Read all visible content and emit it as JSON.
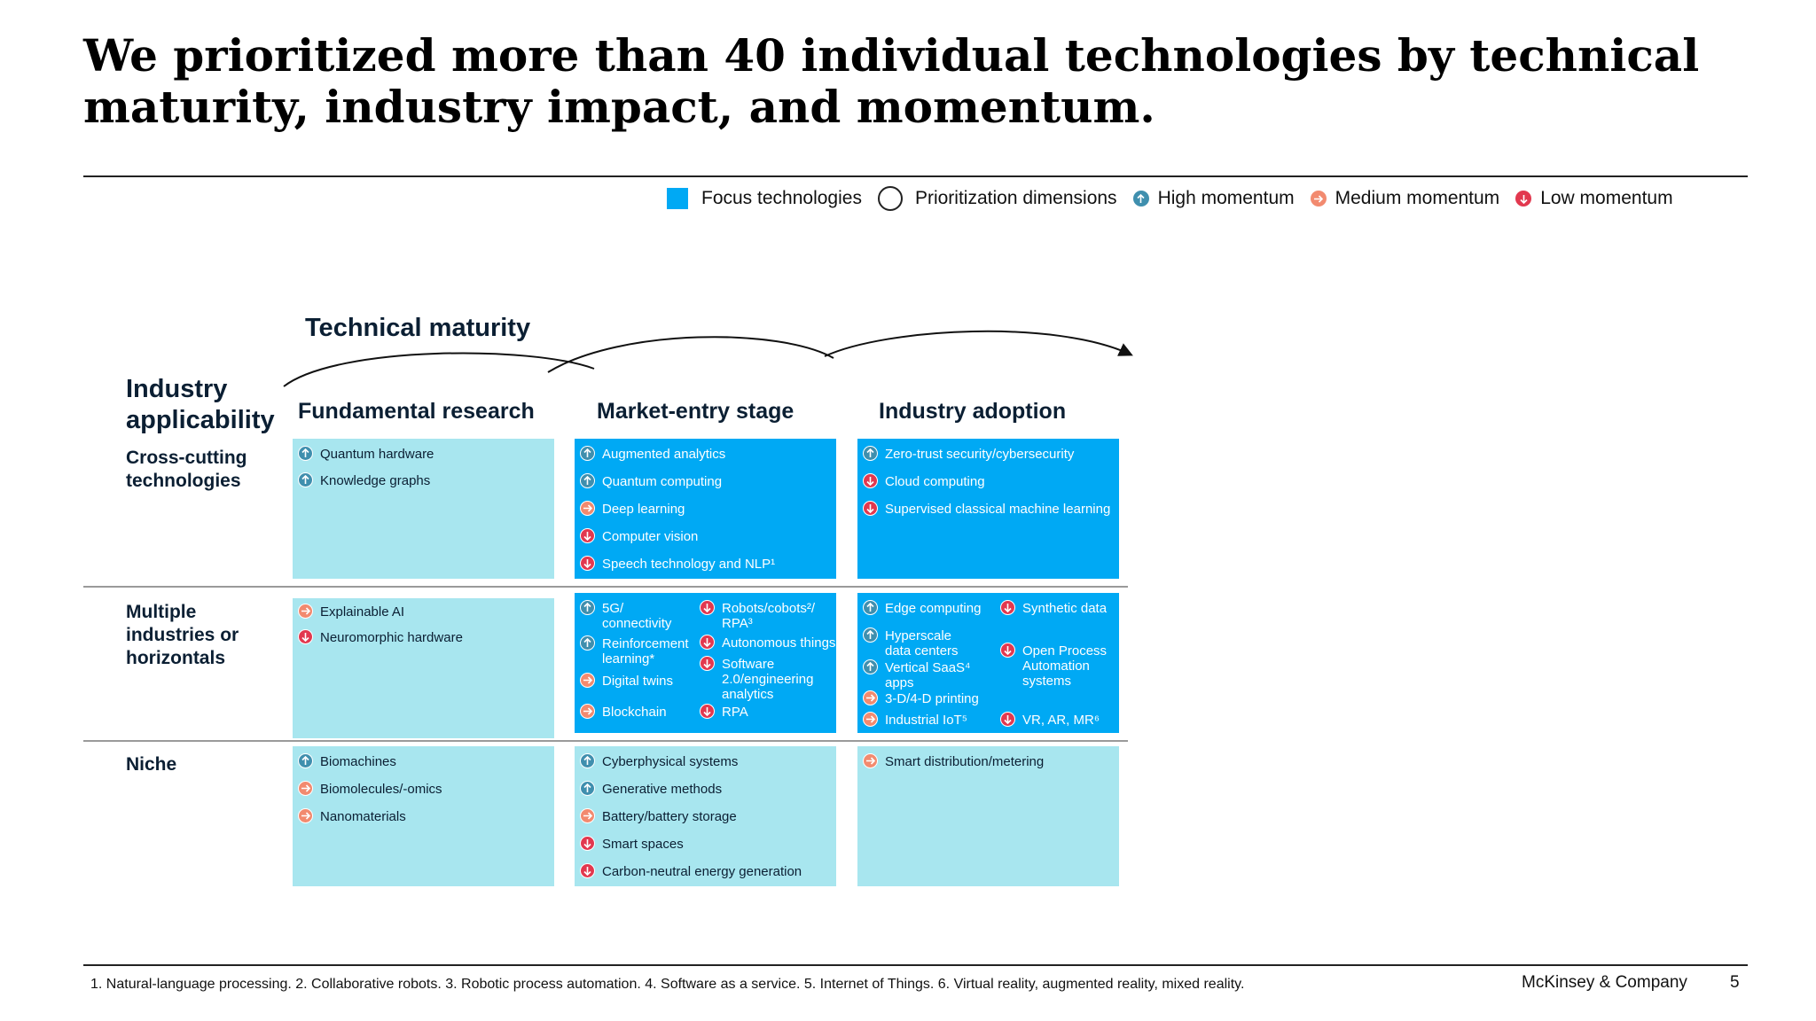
{
  "title": "We prioritized more than 40 individual technologies by technical maturity, industry impact, and momentum.",
  "legend": {
    "focus": "Focus technologies",
    "dimensions": "Prioritization dimensions",
    "high": "High momentum",
    "medium": "Medium momentum",
    "low": "Low momentum"
  },
  "colors": {
    "focus": "#00a9f4",
    "other": "#a8e6ef",
    "high": "#3f8fae",
    "medium": "#f28a6f",
    "low": "#e2384f"
  },
  "axis": {
    "technical_maturity": "Technical maturity",
    "industry_applicability": "Industry\napplicability"
  },
  "columns": [
    "Fundamental research",
    "Market-entry stage",
    "Industry adoption"
  ],
  "rows": [
    "Cross-cutting\ntechnologies",
    "Multiple\nindustries or\nhorizontals",
    "Niche"
  ],
  "cells": {
    "cross_fundamental": [
      {
        "label": "Quantum hardware",
        "momentum": "high"
      },
      {
        "label": "Knowledge graphs",
        "momentum": "high"
      }
    ],
    "cross_market": [
      {
        "label": "Augmented analytics",
        "momentum": "high"
      },
      {
        "label": "Quantum computing",
        "momentum": "high"
      },
      {
        "label": "Deep learning",
        "momentum": "medium"
      },
      {
        "label": "Computer vision",
        "momentum": "low"
      },
      {
        "label": "Speech technology and NLP¹",
        "momentum": "low"
      }
    ],
    "cross_adoption": [
      {
        "label": "Zero-trust security/cybersecurity",
        "momentum": "high"
      },
      {
        "label": "Cloud computing",
        "momentum": "low"
      },
      {
        "label": "Supervised classical machine learning",
        "momentum": "low"
      }
    ],
    "multi_fundamental": [
      {
        "label": "Explainable AI",
        "momentum": "medium"
      },
      {
        "label": "Neuromorphic hardware",
        "momentum": "low"
      }
    ],
    "multi_market": [
      {
        "label": "5G/\nconnectivity",
        "momentum": "high"
      },
      {
        "label": "Reinforcement\nlearning*",
        "momentum": "high"
      },
      {
        "label": "Digital twins",
        "momentum": "medium"
      },
      {
        "label": "Blockchain",
        "momentum": "medium"
      },
      {
        "label": "Robots/cobots²/\nRPA³",
        "momentum": "low"
      },
      {
        "label": "Autonomous things",
        "momentum": "low"
      },
      {
        "label": "Software\n2.0/engineering\nanalytics",
        "momentum": "low"
      },
      {
        "label": "RPA",
        "momentum": "low"
      }
    ],
    "multi_adoption": [
      {
        "label": "Edge computing",
        "momentum": "high"
      },
      {
        "label": "Hyperscale\ndata centers",
        "momentum": "high"
      },
      {
        "label": "Vertical SaaS⁴\napps",
        "momentum": "high"
      },
      {
        "label": "3-D/4-D printing",
        "momentum": "medium"
      },
      {
        "label": "Industrial IoT⁵",
        "momentum": "medium"
      },
      {
        "label": "Synthetic data",
        "momentum": "low"
      },
      {
        "label": "Open Process\nAutomation\nsystems",
        "momentum": "low"
      },
      {
        "label": "VR, AR, MR⁶",
        "momentum": "low"
      }
    ],
    "niche_fundamental": [
      {
        "label": "Biomachines",
        "momentum": "high"
      },
      {
        "label": "Biomolecules/-omics",
        "momentum": "medium"
      },
      {
        "label": "Nanomaterials",
        "momentum": "medium"
      }
    ],
    "niche_market": [
      {
        "label": "Cyberphysical systems",
        "momentum": "high"
      },
      {
        "label": "Generative methods",
        "momentum": "high"
      },
      {
        "label": "Battery/battery storage",
        "momentum": "medium"
      },
      {
        "label": "Smart spaces",
        "momentum": "low"
      },
      {
        "label": "Carbon-neutral energy generation",
        "momentum": "low"
      }
    ],
    "niche_adoption": [
      {
        "label": "Smart distribution/metering",
        "momentum": "medium"
      }
    ]
  },
  "footnote": "1. Natural-language processing. 2. Collaborative robots. 3. Robotic process automation. 4. Software as a service. 5. Internet of Things. 6. Virtual reality, augmented reality, mixed reality.",
  "brand": "McKinsey & Company",
  "page_number": "5"
}
